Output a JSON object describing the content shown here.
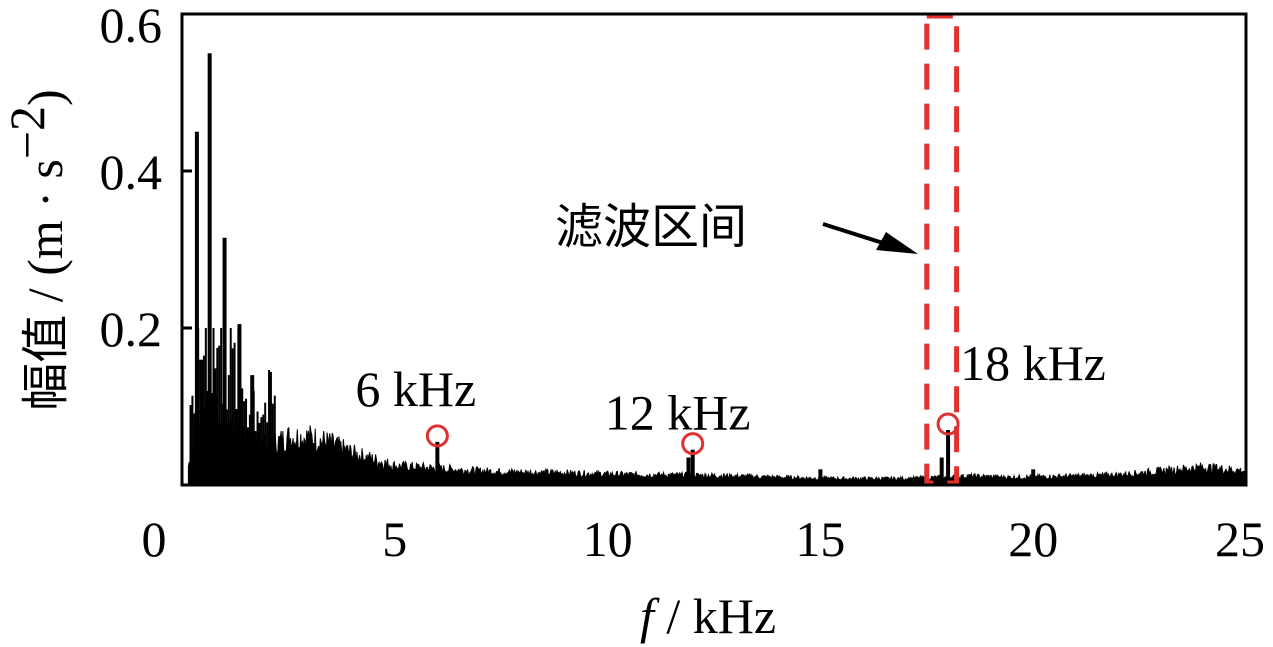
{
  "chart_data": {
    "type": "line",
    "xlabel_italic": "f",
    "xlabel_rest": " / kHz",
    "ylabel_cjk": "幅值",
    "ylabel_rest": " / (m · s",
    "ylabel_sup": "−2",
    "ylabel_close": ")",
    "xlim": [
      0,
      25
    ],
    "ylim": [
      0,
      0.6
    ],
    "x_ticks": [
      0,
      5,
      10,
      15,
      20,
      25
    ],
    "y_ticks": [
      0.2,
      0.4,
      0.6
    ],
    "x_tick_labels": [
      "0",
      "5",
      "10",
      "15",
      "20",
      "25"
    ],
    "y_tick_labels": [
      "0.2",
      "0.4",
      "0.6"
    ],
    "grid": false,
    "series": [
      {
        "color": "#000000",
        "peaks": [
          {
            "x": 0.35,
            "y": 0.45
          },
          {
            "x": 0.65,
            "y": 0.55
          },
          {
            "x": 1.0,
            "y": 0.315
          },
          {
            "x": 1.35,
            "y": 0.205
          },
          {
            "x": 1.65,
            "y": 0.14
          },
          {
            "x": 6.0,
            "y": 0.055
          },
          {
            "x": 11.9,
            "y": 0.035
          },
          {
            "x": 12.0,
            "y": 0.045
          },
          {
            "x": 15.0,
            "y": 0.02
          },
          {
            "x": 17.85,
            "y": 0.035
          },
          {
            "x": 18.0,
            "y": 0.07
          },
          {
            "x": 20.0,
            "y": 0.02
          }
        ],
        "envelope": [
          [
            0.15,
            0.03
          ],
          [
            0.5,
            0.12
          ],
          [
            1.0,
            0.1
          ],
          [
            1.5,
            0.075
          ],
          [
            2.0,
            0.06
          ],
          [
            2.5,
            0.075
          ],
          [
            3.0,
            0.075
          ],
          [
            3.5,
            0.065
          ],
          [
            4.0,
            0.05
          ],
          [
            4.5,
            0.04
          ],
          [
            5.0,
            0.03
          ],
          [
            6.0,
            0.026
          ],
          [
            7.0,
            0.022
          ],
          [
            8.0,
            0.02
          ],
          [
            9.0,
            0.019
          ],
          [
            10.0,
            0.017
          ],
          [
            11.0,
            0.016
          ],
          [
            12.5,
            0.015
          ],
          [
            14.0,
            0.012
          ],
          [
            15.5,
            0.01
          ],
          [
            17.0,
            0.01
          ],
          [
            18.5,
            0.014
          ],
          [
            19.5,
            0.012
          ],
          [
            21.0,
            0.014
          ],
          [
            22.0,
            0.016
          ],
          [
            23.0,
            0.022
          ],
          [
            24.0,
            0.028
          ],
          [
            25.0,
            0.022
          ]
        ]
      }
    ],
    "annotations": [
      {
        "text": "6 kHz",
        "x": 6.0,
        "y": 0.055
      },
      {
        "text": "12 kHz",
        "x": 12.0,
        "y": 0.045
      },
      {
        "text": "18 kHz",
        "x": 18.0,
        "y": 0.07
      }
    ],
    "marker_color": "#e03030",
    "filter_band": {
      "label": "滤波区间",
      "x_range": [
        17.5,
        18.2
      ],
      "color": "#e03030"
    }
  }
}
